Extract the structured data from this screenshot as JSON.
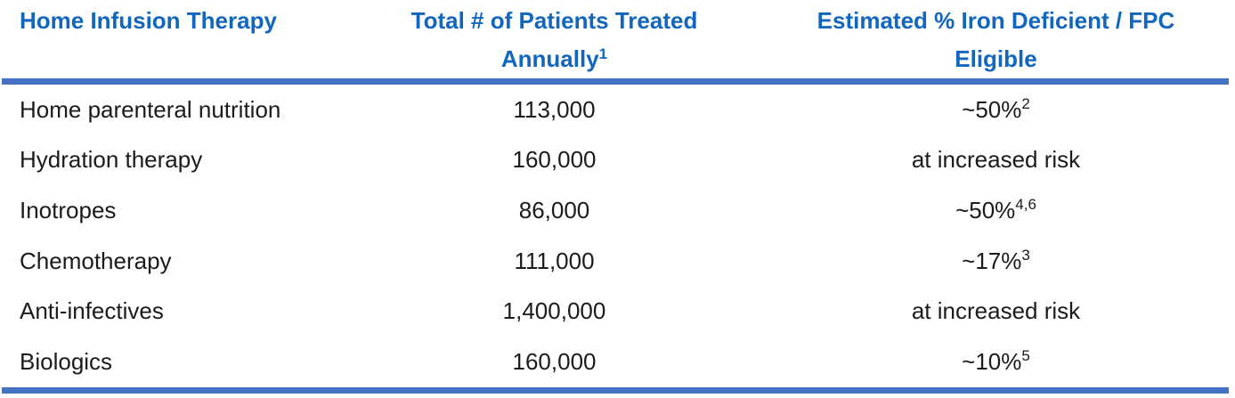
{
  "colors": {
    "header_text": "#1266BE",
    "divider": "#4472C4",
    "body_text": "#1B1B1B",
    "background": "#FFFFFF"
  },
  "table": {
    "header": {
      "col1": {
        "line1": "Home Infusion Therapy"
      },
      "col2": {
        "line1": "Total # of Patients Treated",
        "line2": "Annually",
        "line2_sup": "1"
      },
      "col3": {
        "line1": "Estimated % Iron Deficient / FPC",
        "line2": "Eligible",
        "line2_sup": ""
      }
    },
    "rows": [
      {
        "therapy": "Home parenteral nutrition",
        "patients": "113,000",
        "estimate": "~50%",
        "estimate_sup": "2"
      },
      {
        "therapy": "Hydration therapy",
        "patients": "160,000",
        "estimate": "at increased risk",
        "estimate_sup": ""
      },
      {
        "therapy": "Inotropes",
        "patients": "86,000",
        "estimate": "~50%",
        "estimate_sup": "4,6"
      },
      {
        "therapy": "Chemotherapy",
        "patients": "111,000",
        "estimate": "~17%",
        "estimate_sup": "3"
      },
      {
        "therapy": "Anti-infectives",
        "patients": "1,400,000",
        "estimate": "at increased risk",
        "estimate_sup": ""
      },
      {
        "therapy": "Biologics",
        "patients": "160,000",
        "estimate": "~10%",
        "estimate_sup": "5"
      }
    ]
  }
}
